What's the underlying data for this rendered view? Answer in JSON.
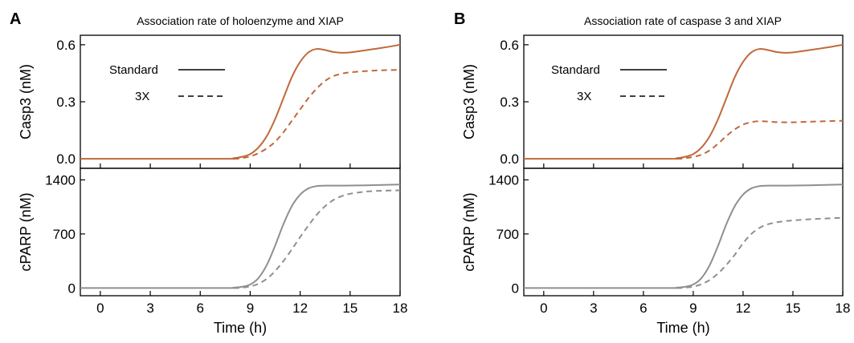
{
  "colors": {
    "casp3": "#c0693a",
    "cparp": "#8f8f8f",
    "axis": "#000000"
  },
  "chart_data": [
    {
      "type": "line",
      "panel": "A",
      "title": "Association rate of holoenzyme and XIAP",
      "xlabel": "Time (h)",
      "xticks": [
        0,
        3,
        6,
        9,
        12,
        15,
        18
      ],
      "xlim": [
        -1.2,
        18
      ],
      "legend": [
        {
          "label": "Standard",
          "style": "solid"
        },
        {
          "label": "3X",
          "style": "dashed"
        }
      ],
      "subplots": [
        {
          "ylabel": "Casp3 (nM)",
          "ylim": [
            -0.05,
            0.65
          ],
          "yticks": [
            "0.0",
            "0.3",
            "0.6"
          ],
          "yticks_values": [
            0,
            0.3,
            0.6
          ],
          "series": [
            {
              "name": "Standard",
              "style": "solid",
              "x": [
                -1.2,
                7.5,
                8.0,
                8.5,
                9.0,
                9.5,
                10.0,
                10.5,
                11.0,
                11.5,
                12.0,
                12.5,
                13.0,
                13.5,
                14.0,
                14.5,
                15.0,
                16.0,
                17.0,
                18.0
              ],
              "y": [
                0,
                0,
                0.003,
                0.01,
                0.025,
                0.06,
                0.12,
                0.21,
                0.32,
                0.43,
                0.51,
                0.56,
                0.578,
                0.572,
                0.562,
                0.558,
                0.56,
                0.572,
                0.585,
                0.6
              ]
            },
            {
              "name": "3X",
              "style": "dashed",
              "x": [
                8.0,
                8.5,
                9.0,
                9.5,
                10.0,
                10.5,
                11.0,
                11.5,
                12.0,
                12.5,
                13.0,
                13.5,
                14.0,
                14.5,
                15.0,
                16.0,
                17.0,
                18.0
              ],
              "y": [
                0,
                0.004,
                0.012,
                0.03,
                0.055,
                0.09,
                0.14,
                0.2,
                0.26,
                0.32,
                0.37,
                0.41,
                0.435,
                0.448,
                0.455,
                0.462,
                0.466,
                0.468
              ]
            }
          ]
        },
        {
          "ylabel": "cPARP (nM)",
          "ylim": [
            -100,
            1550
          ],
          "yticks": [
            "0",
            "700",
            "1400"
          ],
          "yticks_values": [
            0,
            700,
            1400
          ],
          "series": [
            {
              "name": "Standard",
              "style": "solid",
              "x": [
                -1.2,
                7.5,
                8.0,
                8.5,
                9.0,
                9.5,
                10.0,
                10.5,
                11.0,
                11.5,
                12.0,
                12.5,
                13.0,
                13.5,
                14.0,
                15.0,
                16.0,
                17.0,
                18.0
              ],
              "y": [
                0,
                0,
                5,
                15,
                45,
                130,
                300,
                550,
                830,
                1060,
                1210,
                1290,
                1320,
                1325,
                1325,
                1327,
                1330,
                1335,
                1340
              ]
            },
            {
              "name": "3X",
              "style": "dashed",
              "x": [
                8.0,
                8.5,
                9.0,
                9.5,
                10.0,
                10.5,
                11.0,
                11.5,
                12.0,
                12.5,
                13.0,
                13.5,
                14.0,
                14.5,
                15.0,
                16.0,
                17.0,
                18.0
              ],
              "y": [
                0,
                5,
                20,
                55,
                120,
                220,
                350,
                500,
                660,
                810,
                950,
                1060,
                1140,
                1190,
                1220,
                1250,
                1260,
                1265
              ]
            }
          ]
        }
      ]
    },
    {
      "type": "line",
      "panel": "B",
      "title": "Association rate of caspase 3 and XIAP",
      "xlabel": "Time (h)",
      "xticks": [
        0,
        3,
        6,
        9,
        12,
        15,
        18
      ],
      "xlim": [
        -1.2,
        18
      ],
      "legend": [
        {
          "label": "Standard",
          "style": "solid"
        },
        {
          "label": "3X",
          "style": "dashed"
        }
      ],
      "subplots": [
        {
          "ylabel": "Casp3 (nM)",
          "ylim": [
            -0.05,
            0.65
          ],
          "yticks": [
            "0.0",
            "0.3",
            "0.6"
          ],
          "yticks_values": [
            0,
            0.3,
            0.6
          ],
          "series": [
            {
              "name": "Standard",
              "style": "solid",
              "x": [
                -1.2,
                7.5,
                8.0,
                8.5,
                9.0,
                9.5,
                10.0,
                10.5,
                11.0,
                11.5,
                12.0,
                12.5,
                13.0,
                13.5,
                14.0,
                14.5,
                15.0,
                16.0,
                17.0,
                18.0
              ],
              "y": [
                0,
                0,
                0.003,
                0.01,
                0.025,
                0.06,
                0.12,
                0.21,
                0.32,
                0.43,
                0.51,
                0.56,
                0.578,
                0.572,
                0.562,
                0.558,
                0.56,
                0.572,
                0.585,
                0.6
              ]
            },
            {
              "name": "3X",
              "style": "dashed",
              "x": [
                8.0,
                8.5,
                9.0,
                9.5,
                10.0,
                10.5,
                11.0,
                11.5,
                12.0,
                12.5,
                13.0,
                13.5,
                14.0,
                14.5,
                15.0,
                16.0,
                17.0,
                18.0
              ],
              "y": [
                0,
                0.003,
                0.01,
                0.022,
                0.045,
                0.08,
                0.12,
                0.155,
                0.18,
                0.193,
                0.198,
                0.196,
                0.193,
                0.192,
                0.192,
                0.195,
                0.198,
                0.2
              ]
            }
          ]
        },
        {
          "ylabel": "cPARP (nM)",
          "ylim": [
            -100,
            1550
          ],
          "yticks": [
            "0",
            "700",
            "1400"
          ],
          "yticks_values": [
            0,
            700,
            1400
          ],
          "series": [
            {
              "name": "Standard",
              "style": "solid",
              "x": [
                -1.2,
                7.5,
                8.0,
                8.5,
                9.0,
                9.5,
                10.0,
                10.5,
                11.0,
                11.5,
                12.0,
                12.5,
                13.0,
                13.5,
                14.0,
                15.0,
                16.0,
                17.0,
                18.0
              ],
              "y": [
                0,
                0,
                5,
                15,
                45,
                130,
                300,
                550,
                830,
                1060,
                1210,
                1290,
                1320,
                1325,
                1325,
                1327,
                1330,
                1335,
                1340
              ]
            },
            {
              "name": "3X",
              "style": "dashed",
              "x": [
                8.0,
                8.5,
                9.0,
                9.5,
                10.0,
                10.5,
                11.0,
                11.5,
                12.0,
                12.5,
                13.0,
                13.5,
                14.0,
                14.5,
                15.0,
                16.0,
                17.0,
                18.0
              ],
              "y": [
                0,
                5,
                18,
                50,
                105,
                190,
                300,
                430,
                580,
                700,
                780,
                825,
                850,
                865,
                875,
                890,
                900,
                910
              ]
            }
          ]
        }
      ]
    }
  ]
}
